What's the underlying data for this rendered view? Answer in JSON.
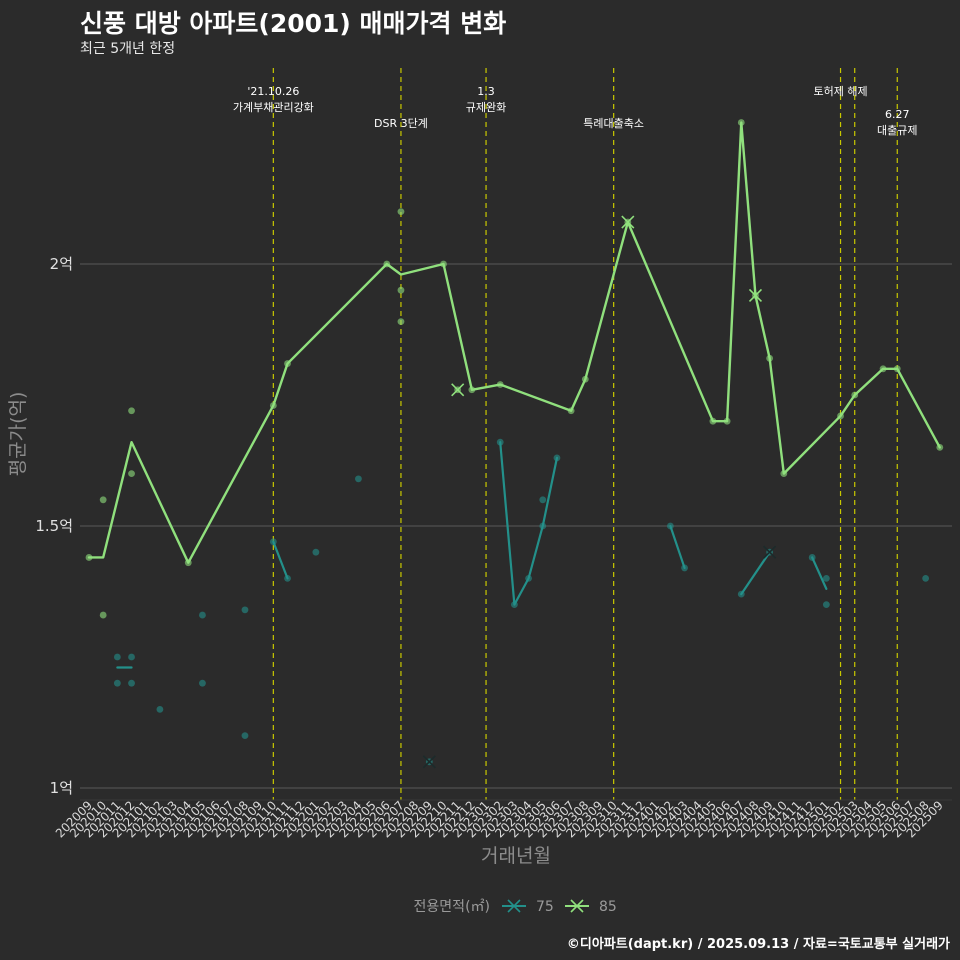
{
  "header": {
    "title": "신풍 대방 아파트(2001) 매매가격 변화",
    "subtitle": "최근 5개년 한정"
  },
  "footer": {
    "credit": "©디아파트(dapt.kr) / 2025.09.13 / 자료=국토교통부 실거래가"
  },
  "colors": {
    "background": "#2b2b2b",
    "grid": "#5a5a5a",
    "series_75": "#23908a",
    "series_85": "#90e07d",
    "event_line": "#c8c800"
  },
  "chart_data": {
    "type": "line",
    "xlabel": "거래년월",
    "ylabel": "평균가(억)",
    "categories": [
      "202009",
      "202010",
      "202011",
      "202012",
      "202101",
      "202102",
      "202103",
      "202104",
      "202105",
      "202106",
      "202107",
      "202108",
      "202109",
      "202110",
      "202111",
      "202112",
      "202201",
      "202202",
      "202203",
      "202204",
      "202205",
      "202206",
      "202207",
      "202208",
      "202209",
      "202210",
      "202211",
      "202212",
      "202301",
      "202302",
      "202303",
      "202304",
      "202305",
      "202306",
      "202307",
      "202308",
      "202309",
      "202310",
      "202311",
      "202312",
      "202401",
      "202402",
      "202403",
      "202404",
      "202405",
      "202406",
      "202407",
      "202408",
      "202409",
      "202410",
      "202411",
      "202412",
      "202501",
      "202502",
      "202503",
      "202504",
      "202505",
      "202506",
      "202507",
      "202508",
      "202509"
    ],
    "ylim": [
      0.98,
      2.5
    ],
    "yticks": [
      {
        "value": 1.0,
        "label": "1억"
      },
      {
        "value": 1.5,
        "label": "1.5억"
      },
      {
        "value": 2.0,
        "label": "2억"
      }
    ],
    "grid": true,
    "legend": {
      "title": "전용면적(㎡)",
      "position": "bottom",
      "entries": [
        "75",
        "85"
      ]
    },
    "events": [
      {
        "month": "202110",
        "lines": [
          "'21.10.26",
          "가계부채관리강화"
        ],
        "row": 1
      },
      {
        "month": "202207",
        "lines": [
          "DSR 3단계"
        ],
        "row": 2
      },
      {
        "month": "202301",
        "lines": [
          "1.3",
          "규제완화"
        ],
        "row": 1
      },
      {
        "month": "202310",
        "lines": [
          "특례대출축소"
        ],
        "row": 2
      },
      {
        "month": "202502",
        "lines": [
          "토허제 해제"
        ],
        "row": 1
      },
      {
        "month": "202503",
        "lines": [],
        "row": 1
      },
      {
        "month": "202506",
        "lines": [
          "6.27",
          "대출규제"
        ],
        "row": 1.5
      }
    ],
    "series": [
      {
        "name": "75",
        "line": [
          [
            "202011",
            1.23
          ],
          [
            "202012",
            1.23
          ],
          [
            "202110",
            1.47
          ],
          [
            "202111",
            1.4
          ],
          [
            "202302",
            1.66
          ],
          [
            "202303",
            1.35
          ],
          [
            "202304",
            1.4
          ],
          [
            "202305",
            1.5
          ],
          [
            "202306",
            1.63
          ],
          [
            "202402",
            1.5
          ],
          [
            "202403",
            1.42
          ],
          [
            "202407",
            1.37
          ],
          [
            "202409",
            1.45
          ],
          [
            "202412",
            1.44
          ],
          [
            "202501",
            1.38
          ]
        ],
        "points": [
          [
            "202011",
            1.25
          ],
          [
            "202011",
            1.2
          ],
          [
            "202012",
            1.25
          ],
          [
            "202012",
            1.2
          ],
          [
            "202102",
            1.15
          ],
          [
            "202105",
            1.33
          ],
          [
            "202105",
            1.2
          ],
          [
            "202108",
            1.34
          ],
          [
            "202108",
            1.1
          ],
          [
            "202110",
            1.47
          ],
          [
            "202111",
            1.4
          ],
          [
            "202201",
            1.45
          ],
          [
            "202204",
            1.59
          ],
          [
            "202302",
            1.66
          ],
          [
            "202303",
            1.35
          ],
          [
            "202304",
            1.4
          ],
          [
            "202305",
            1.55
          ],
          [
            "202305",
            1.5
          ],
          [
            "202306",
            1.63
          ],
          [
            "202402",
            1.5
          ],
          [
            "202403",
            1.42
          ],
          [
            "202407",
            1.37
          ],
          [
            "202412",
            1.44
          ],
          [
            "202501",
            1.4
          ],
          [
            "202501",
            1.35
          ],
          [
            "202508",
            1.4
          ]
        ],
        "crosses": [
          [
            "202209",
            1.05
          ],
          [
            "202409",
            1.45
          ]
        ]
      },
      {
        "name": "85",
        "line": [
          [
            "202009",
            1.44
          ],
          [
            "202010",
            1.44
          ],
          [
            "202012",
            1.66
          ],
          [
            "202104",
            1.43
          ],
          [
            "202110",
            1.73
          ],
          [
            "202111",
            1.81
          ],
          [
            "202206",
            2.0
          ],
          [
            "202207",
            1.98
          ],
          [
            "202210",
            2.0
          ],
          [
            "202212",
            1.76
          ],
          [
            "202302",
            1.77
          ],
          [
            "202307",
            1.72
          ],
          [
            "202308",
            1.78
          ],
          [
            "202311",
            2.08
          ],
          [
            "202405",
            1.7
          ],
          [
            "202406",
            1.7
          ],
          [
            "202407",
            2.27
          ],
          [
            "202408",
            1.94
          ],
          [
            "202409",
            1.82
          ],
          [
            "202410",
            1.6
          ],
          [
            "202502",
            1.71
          ],
          [
            "202503",
            1.75
          ],
          [
            "202505",
            1.8
          ],
          [
            "202506",
            1.8
          ],
          [
            "202509",
            1.65
          ]
        ],
        "points": [
          [
            "202009",
            1.44
          ],
          [
            "202010",
            1.55
          ],
          [
            "202010",
            1.33
          ],
          [
            "202012",
            1.72
          ],
          [
            "202012",
            1.6
          ],
          [
            "202104",
            1.43
          ],
          [
            "202110",
            1.73
          ],
          [
            "202111",
            1.81
          ],
          [
            "202206",
            2.0
          ],
          [
            "202207",
            2.1
          ],
          [
            "202207",
            1.95
          ],
          [
            "202207",
            1.89
          ],
          [
            "202210",
            2.0
          ],
          [
            "202212",
            1.76
          ],
          [
            "202302",
            1.77
          ],
          [
            "202307",
            1.72
          ],
          [
            "202308",
            1.78
          ],
          [
            "202405",
            1.7
          ],
          [
            "202406",
            1.7
          ],
          [
            "202407",
            2.27
          ],
          [
            "202409",
            1.82
          ],
          [
            "202410",
            1.6
          ],
          [
            "202502",
            1.71
          ],
          [
            "202503",
            1.75
          ],
          [
            "202505",
            1.8
          ],
          [
            "202506",
            1.8
          ],
          [
            "202509",
            1.65
          ]
        ],
        "crosses": [
          [
            "202211",
            1.76
          ],
          [
            "202311",
            2.08
          ],
          [
            "202408",
            1.94
          ]
        ]
      }
    ]
  }
}
